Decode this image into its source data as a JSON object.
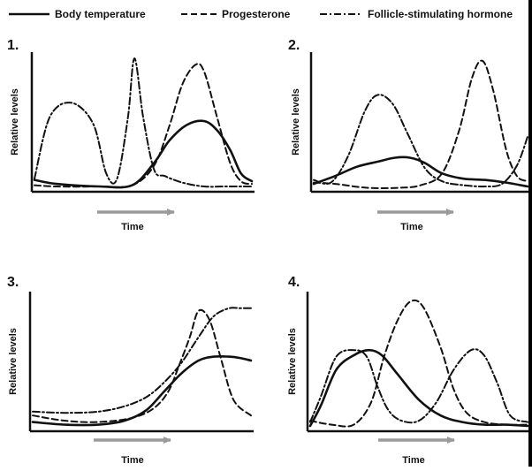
{
  "legend": {
    "items": [
      {
        "label": "Body temperature",
        "style": "solid"
      },
      {
        "label": "Progesterone",
        "style": "dashed"
      },
      {
        "label": "Follicle-stimulating hormone",
        "style": "dashdot"
      }
    ]
  },
  "chart_data": [
    {
      "type": "line",
      "panel_label": "1.",
      "xlabel": "Time",
      "ylabel": "Relative levels",
      "xlim": [
        0,
        1
      ],
      "ylim": [
        0,
        1
      ],
      "series": [
        {
          "name": "Body temperature",
          "style": "solid",
          "x": [
            0,
            0.1,
            0.3,
            0.45,
            0.55,
            0.62,
            0.7,
            0.78,
            0.84,
            0.9,
            0.95,
            1
          ],
          "y": [
            0.07,
            0.04,
            0.02,
            0.03,
            0.2,
            0.37,
            0.49,
            0.52,
            0.45,
            0.3,
            0.12,
            0.06
          ]
        },
        {
          "name": "Progesterone",
          "style": "dashed",
          "x": [
            0,
            0.1,
            0.3,
            0.45,
            0.55,
            0.62,
            0.68,
            0.74,
            0.78,
            0.84,
            0.9,
            0.95,
            1
          ],
          "y": [
            0.03,
            0.02,
            0.02,
            0.03,
            0.18,
            0.48,
            0.8,
            0.95,
            0.9,
            0.55,
            0.2,
            0.06,
            0.04
          ]
        },
        {
          "name": "Follicle-stimulating hormone",
          "style": "dashdot",
          "x": [
            0,
            0.07,
            0.17,
            0.27,
            0.33,
            0.38,
            0.43,
            0.46,
            0.5,
            0.55,
            0.6,
            0.68,
            0.78,
            0.88,
            1
          ],
          "y": [
            0.08,
            0.55,
            0.66,
            0.5,
            0.12,
            0.08,
            0.55,
            1.0,
            0.55,
            0.15,
            0.1,
            0.05,
            0.02,
            0.02,
            0.02
          ]
        }
      ]
    },
    {
      "type": "line",
      "panel_label": "2.",
      "xlabel": "Time",
      "ylabel": "Relative levels",
      "xlim": [
        0,
        1
      ],
      "ylim": [
        0,
        1
      ],
      "series": [
        {
          "name": "Body temperature",
          "style": "solid",
          "x": [
            0,
            0.1,
            0.2,
            0.3,
            0.38,
            0.45,
            0.52,
            0.6,
            0.7,
            0.8,
            0.9,
            1
          ],
          "y": [
            0.04,
            0.1,
            0.17,
            0.21,
            0.24,
            0.24,
            0.2,
            0.12,
            0.08,
            0.07,
            0.05,
            0.02
          ]
        },
        {
          "name": "Progesterone",
          "style": "dashed",
          "x": [
            0,
            0.1,
            0.25,
            0.4,
            0.5,
            0.6,
            0.68,
            0.74,
            0.79,
            0.84,
            0.9,
            0.95,
            1
          ],
          "y": [
            0.05,
            0.04,
            0.01,
            0.01,
            0.03,
            0.12,
            0.45,
            0.85,
            0.98,
            0.75,
            0.3,
            0.1,
            0.06
          ]
        },
        {
          "name": "Follicle-stimulating hormone",
          "style": "dashdot",
          "x": [
            0,
            0.08,
            0.16,
            0.24,
            0.3,
            0.37,
            0.44,
            0.52,
            0.6,
            0.7,
            0.8,
            0.88,
            0.95,
            1
          ],
          "y": [
            0.07,
            0.05,
            0.25,
            0.6,
            0.72,
            0.65,
            0.42,
            0.16,
            0.06,
            0.03,
            0.02,
            0.04,
            0.18,
            0.4
          ]
        }
      ]
    },
    {
      "type": "line",
      "panel_label": "3.",
      "xlabel": "Time",
      "ylabel": "Relative levels",
      "xlim": [
        0,
        1
      ],
      "ylim": [
        0,
        1
      ],
      "series": [
        {
          "name": "Body temperature",
          "style": "solid",
          "x": [
            0,
            0.15,
            0.3,
            0.42,
            0.52,
            0.6,
            0.68,
            0.76,
            0.83,
            0.9,
            0.95,
            1
          ],
          "y": [
            0.05,
            0.03,
            0.03,
            0.06,
            0.14,
            0.28,
            0.42,
            0.52,
            0.55,
            0.55,
            0.54,
            0.52
          ]
        },
        {
          "name": "Progesterone",
          "style": "dashed",
          "x": [
            0,
            0.15,
            0.3,
            0.45,
            0.55,
            0.62,
            0.67,
            0.72,
            0.76,
            0.81,
            0.86,
            0.92,
            1
          ],
          "y": [
            0.1,
            0.06,
            0.05,
            0.08,
            0.15,
            0.28,
            0.48,
            0.7,
            0.9,
            0.83,
            0.55,
            0.22,
            0.1
          ]
        },
        {
          "name": "Follicle-stimulating hormone",
          "style": "dashdot",
          "x": [
            0,
            0.15,
            0.3,
            0.42,
            0.52,
            0.6,
            0.68,
            0.76,
            0.83,
            0.9,
            0.95,
            1
          ],
          "y": [
            0.13,
            0.12,
            0.13,
            0.17,
            0.24,
            0.35,
            0.5,
            0.7,
            0.86,
            0.92,
            0.92,
            0.92
          ]
        }
      ]
    },
    {
      "type": "line",
      "panel_label": "4.",
      "xlabel": "Time",
      "ylabel": "Relative levels",
      "xlim": [
        0,
        1
      ],
      "ylim": [
        0,
        1
      ],
      "series": [
        {
          "name": "Body temperature",
          "style": "solid",
          "x": [
            0,
            0.05,
            0.12,
            0.2,
            0.27,
            0.33,
            0.4,
            0.5,
            0.6,
            0.7,
            0.8,
            0.9,
            1
          ],
          "y": [
            0.02,
            0.18,
            0.45,
            0.56,
            0.6,
            0.56,
            0.42,
            0.22,
            0.1,
            0.05,
            0.03,
            0.03,
            0.02
          ]
        },
        {
          "name": "Progesterone",
          "style": "dashed",
          "x": [
            0,
            0.1,
            0.2,
            0.28,
            0.34,
            0.4,
            0.46,
            0.52,
            0.6,
            0.66,
            0.72,
            0.8,
            0.9,
            1
          ],
          "y": [
            0.06,
            0.03,
            0.03,
            0.2,
            0.55,
            0.82,
            0.97,
            0.93,
            0.62,
            0.3,
            0.12,
            0.05,
            0.03,
            0.03
          ]
        },
        {
          "name": "Follicle-stimulating hormone",
          "style": "dashdot",
          "x": [
            0,
            0.05,
            0.12,
            0.2,
            0.26,
            0.31,
            0.36,
            0.42,
            0.5,
            0.58,
            0.66,
            0.74,
            0.8,
            0.86,
            0.92,
            1
          ],
          "y": [
            0.05,
            0.25,
            0.55,
            0.6,
            0.55,
            0.32,
            0.14,
            0.06,
            0.06,
            0.2,
            0.45,
            0.6,
            0.56,
            0.35,
            0.1,
            0.05
          ]
        }
      ]
    }
  ]
}
